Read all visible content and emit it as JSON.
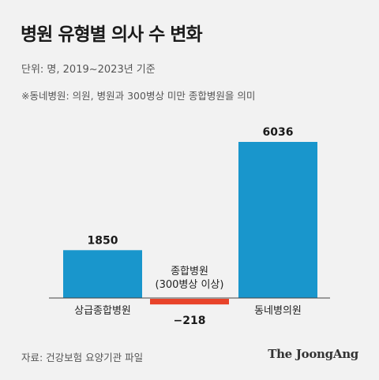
{
  "header": {
    "title": "병원 유형별 의사 수 변화",
    "subtitle": "단위: 명, 2019~2023년 기준",
    "note": "※동네병원: 의원, 병원과 300병상 미만 종합병원을 의미"
  },
  "footer": {
    "source": "자료: 건강보험 요양기관 파일",
    "logo": "The JoongAng"
  },
  "colors": {
    "positive": "#1996cc",
    "negative": "#e8432a",
    "axis": "#444444"
  },
  "chart_data": {
    "type": "bar",
    "categories": [
      "상급종합병원",
      "종합병원 (300병상 이상)",
      "동네병의원"
    ],
    "category_label_lines": [
      [
        "상급종합병원"
      ],
      [
        "종합병원",
        "(300병상 이상)"
      ],
      [
        "동네병의원"
      ]
    ],
    "values": [
      1850,
      -218,
      6036
    ],
    "value_labels": [
      "1850",
      "−218",
      "6036"
    ],
    "title": "병원 유형별 의사 수 변화",
    "xlabel": "",
    "ylabel": "",
    "grid": false,
    "legend": "none"
  }
}
